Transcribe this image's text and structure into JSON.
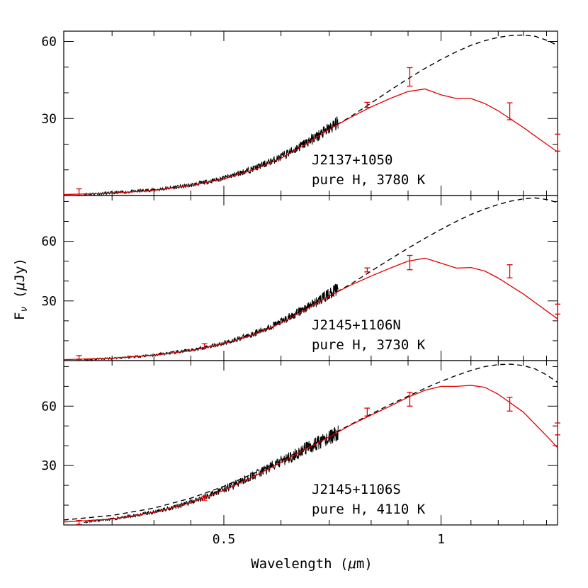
{
  "figure": {
    "xlabel_prefix": "Wavelength (",
    "xlabel_mu": "μ",
    "xlabel_suffix": "m)",
    "ylabel_base": "F",
    "ylabel_sub": "ν",
    "ylabel_mu": "μ",
    "ylabel_unit": "Jy",
    "ylabel_paren_open": " (",
    "ylabel_paren_close": ")",
    "x_ticklabels": [
      "0.5",
      "1"
    ]
  },
  "chart_data": [
    {
      "type": "line",
      "x_scale": "log",
      "xlim": [
        0.3,
        1.45
      ],
      "ylim": [
        0,
        64
      ],
      "y_ticks": [
        "30",
        "60"
      ],
      "label_line1": "J2137+1050",
      "label_line2": "pure H, 3780 K",
      "spectrum": {
        "x": [
          0.32,
          0.35,
          0.4,
          0.45,
          0.5,
          0.55,
          0.6,
          0.65,
          0.7,
          0.72
        ],
        "y": [
          0.5,
          1.0,
          2.2,
          4.0,
          6.8,
          10.5,
          15.0,
          20.5,
          26.0,
          28.5
        ]
      },
      "model": {
        "x": [
          0.3,
          0.35,
          0.4,
          0.45,
          0.5,
          0.55,
          0.6,
          0.65,
          0.7,
          0.75,
          0.8,
          0.85,
          0.9,
          0.95,
          1.0,
          1.05,
          1.1,
          1.15,
          1.2,
          1.3,
          1.4,
          1.45
        ],
        "y": [
          0.4,
          0.9,
          2.0,
          3.8,
          6.5,
          10.0,
          14.5,
          20.0,
          25.8,
          30.5,
          34.5,
          37.8,
          40.5,
          41.5,
          39.2,
          37.8,
          37.8,
          35.8,
          33.0,
          26.5,
          20.0,
          17.0
        ]
      },
      "blackbody": {
        "x": [
          0.7,
          0.75,
          0.8,
          0.85,
          0.9,
          0.95,
          1.0,
          1.05,
          1.1,
          1.15,
          1.2,
          1.25,
          1.3,
          1.35,
          1.4,
          1.45
        ],
        "y": [
          25.8,
          30.8,
          36.0,
          41.0,
          45.5,
          49.5,
          53.0,
          56.0,
          58.5,
          60.3,
          61.6,
          62.3,
          62.5,
          62.0,
          60.5,
          58.5
        ]
      },
      "photometry": [
        {
          "x": 0.315,
          "y": 1.3,
          "err": 1.3
        },
        {
          "x": 0.79,
          "y": 35.3,
          "err": 1.0
        },
        {
          "x": 0.905,
          "y": 46.2,
          "err": 3.6
        },
        {
          "x": 1.245,
          "y": 32.8,
          "err": 3.3
        },
        {
          "x": 1.63,
          "y": 20.6,
          "err": 3.3
        }
      ]
    },
    {
      "type": "line",
      "x_scale": "log",
      "xlim": [
        0.3,
        1.45
      ],
      "ylim": [
        0,
        83
      ],
      "y_ticks": [
        "30",
        "60"
      ],
      "label_line1": "J2145+1106N",
      "label_line2": "pure H, 3730 K",
      "spectrum": {
        "x": [
          0.32,
          0.35,
          0.4,
          0.45,
          0.5,
          0.55,
          0.6,
          0.65,
          0.7,
          0.72
        ],
        "y": [
          0.5,
          1.2,
          2.8,
          5.2,
          8.8,
          13.5,
          19.5,
          26.5,
          33.5,
          36.5
        ]
      },
      "model": {
        "x": [
          0.3,
          0.35,
          0.4,
          0.45,
          0.5,
          0.55,
          0.6,
          0.65,
          0.7,
          0.75,
          0.8,
          0.85,
          0.9,
          0.95,
          1.0,
          1.05,
          1.1,
          1.15,
          1.2,
          1.3,
          1.4,
          1.45
        ],
        "y": [
          0.5,
          1.2,
          2.7,
          5.0,
          8.5,
          13.0,
          18.8,
          25.8,
          32.5,
          38.0,
          42.5,
          46.5,
          50.0,
          51.5,
          49.0,
          46.5,
          46.8,
          45.0,
          41.5,
          33.5,
          25.0,
          21.0
        ]
      },
      "blackbody": {
        "x": [
          0.7,
          0.75,
          0.8,
          0.85,
          0.9,
          0.95,
          1.0,
          1.05,
          1.1,
          1.15,
          1.2,
          1.25,
          1.3,
          1.35,
          1.4,
          1.45
        ],
        "y": [
          32.5,
          38.5,
          45.0,
          51.0,
          56.5,
          61.5,
          66.0,
          70.0,
          73.5,
          76.2,
          78.5,
          80.2,
          81.3,
          81.8,
          81.0,
          79.5
        ]
      },
      "photometry": [
        {
          "x": 0.315,
          "y": 1.5,
          "err": 1.0
        },
        {
          "x": 0.47,
          "y": 7.5,
          "err": 1.0
        },
        {
          "x": 0.79,
          "y": 45.6,
          "err": 1.0
        },
        {
          "x": 0.905,
          "y": 49.3,
          "err": 3.6
        },
        {
          "x": 1.245,
          "y": 44.9,
          "err": 3.3
        },
        {
          "x": 1.63,
          "y": 25.9,
          "err": 2.5
        }
      ]
    },
    {
      "type": "line",
      "x_scale": "log",
      "xlim": [
        0.3,
        1.45
      ],
      "ylim": [
        0,
        83
      ],
      "y_ticks": [
        "30",
        "60"
      ],
      "label_line1": "J2145+1106S",
      "label_line2": "pure H, 4110 K",
      "spectrum": {
        "x": [
          0.32,
          0.35,
          0.4,
          0.45,
          0.5,
          0.55,
          0.6,
          0.65,
          0.7,
          0.72
        ],
        "y": [
          1.5,
          3.0,
          6.5,
          11.5,
          18.0,
          25.0,
          32.0,
          38.5,
          44.0,
          46.5
        ]
      },
      "model": {
        "x": [
          0.3,
          0.35,
          0.4,
          0.45,
          0.5,
          0.55,
          0.6,
          0.65,
          0.7,
          0.75,
          0.8,
          0.85,
          0.9,
          0.95,
          1.0,
          1.05,
          1.1,
          1.15,
          1.2,
          1.3,
          1.4,
          1.45
        ],
        "y": [
          1.5,
          3.0,
          6.3,
          11.2,
          17.5,
          24.5,
          31.5,
          38.5,
          44.5,
          50.5,
          55.5,
          60.0,
          64.5,
          68.0,
          70.0,
          70.0,
          70.5,
          69.5,
          66.0,
          57.0,
          45.0,
          39.0
        ]
      },
      "blackbody": {
        "x": [
          0.3,
          0.35,
          0.4,
          0.45,
          0.5,
          0.55,
          0.6,
          0.65,
          0.7,
          0.75,
          0.8,
          0.85,
          0.9,
          0.95,
          1.0,
          1.05,
          1.1,
          1.15,
          1.2,
          1.25,
          1.3,
          1.35,
          1.4,
          1.45
        ],
        "y": [
          2.5,
          4.8,
          8.5,
          13.5,
          19.5,
          26.0,
          32.5,
          39.0,
          45.0,
          50.8,
          56.0,
          60.8,
          65.0,
          69.0,
          72.5,
          75.5,
          78.0,
          80.0,
          81.0,
          81.2,
          80.5,
          78.8,
          75.8,
          72.0
        ]
      },
      "photometry": [
        {
          "x": 0.315,
          "y": 1.3,
          "err": 1.0
        },
        {
          "x": 0.47,
          "y": 13.5,
          "err": 1.0
        },
        {
          "x": 0.79,
          "y": 57.0,
          "err": 2.0
        },
        {
          "x": 0.905,
          "y": 63.5,
          "err": 3.5
        },
        {
          "x": 1.245,
          "y": 61.0,
          "err": 3.5
        },
        {
          "x": 1.63,
          "y": 48.5,
          "err": 3.0
        }
      ]
    }
  ]
}
